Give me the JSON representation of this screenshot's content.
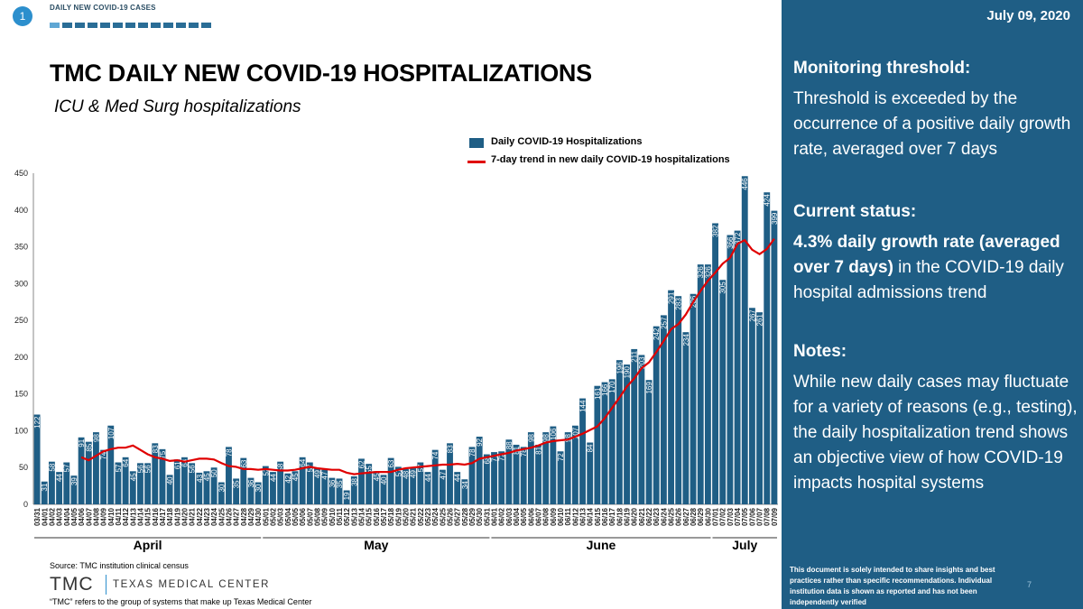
{
  "header": {
    "badge": "1",
    "breadcrumb": "DAILY NEW COVID-19 CASES",
    "title": "TMC DAILY NEW COVID-19 HOSPITALIZATIONS",
    "subtitle": "ICU & Med Surg hospitalizations"
  },
  "legend": {
    "bars": "Daily COVID-19 Hospitalizations",
    "line": "7-day trend in new daily COVID-19 hospitalizations"
  },
  "chart_data": {
    "type": "bar",
    "categories": [
      "03/31",
      "04/01",
      "04/02",
      "04/03",
      "04/04",
      "04/05",
      "04/06",
      "04/07",
      "04/08",
      "04/09",
      "04/10",
      "04/11",
      "04/12",
      "04/13",
      "04/14",
      "04/15",
      "04/16",
      "04/17",
      "04/18",
      "04/19",
      "04/20",
      "04/21",
      "04/22",
      "04/23",
      "04/24",
      "04/25",
      "04/26",
      "04/27",
      "04/28",
      "04/29",
      "04/30",
      "05/01",
      "05/02",
      "05/03",
      "05/04",
      "05/05",
      "05/06",
      "05/07",
      "05/08",
      "05/09",
      "05/10",
      "05/11",
      "05/12",
      "05/13",
      "05/14",
      "05/15",
      "05/16",
      "05/17",
      "05/18",
      "05/19",
      "05/20",
      "05/21",
      "05/22",
      "05/23",
      "05/24",
      "05/25",
      "05/26",
      "05/27",
      "05/28",
      "05/29",
      "05/30",
      "05/31",
      "06/01",
      "06/02",
      "06/03",
      "06/04",
      "06/05",
      "06/06",
      "06/07",
      "06/08",
      "06/09",
      "06/10",
      "06/11",
      "06/12",
      "06/13",
      "06/14",
      "06/15",
      "06/16",
      "06/17",
      "06/18",
      "06/19",
      "06/20",
      "06/21",
      "06/22",
      "06/23",
      "06/24",
      "06/25",
      "06/26",
      "06/27",
      "06/28",
      "06/29",
      "06/30",
      "07/01",
      "07/02",
      "07/03",
      "07/04",
      "07/05",
      "07/06",
      "07/07",
      "07/08",
      "07/09"
    ],
    "series": [
      {
        "name": "Daily COVID-19 Hospitalizations",
        "values": [
          122,
          31,
          58,
          44,
          57,
          39,
          91,
          85,
          98,
          74,
          107,
          57,
          64,
          45,
          56,
          56,
          83,
          75,
          40,
          61,
          64,
          56,
          43,
          45,
          50,
          30,
          78,
          35,
          63,
          36,
          30,
          52,
          44,
          58,
          42,
          45,
          64,
          57,
          49,
          47,
          36,
          35,
          19,
          38,
          62,
          55,
          45,
          40,
          63,
          51,
          48,
          49,
          57,
          44,
          74,
          47,
          83,
          44,
          34,
          78,
          92,
          68,
          71,
          72,
          88,
          81,
          78,
          98,
          81,
          98,
          106,
          72,
          98,
          107,
          144,
          84,
          161,
          166,
          170,
          196,
          190,
          211,
          203,
          169,
          242,
          257,
          291,
          283,
          234,
          286,
          326,
          326,
          382,
          305,
          366,
          372,
          446,
          267,
          261,
          424,
          399
        ]
      },
      {
        "name": "7-day trend in new daily COVID-19 hospitalizations",
        "values": [
          null,
          null,
          null,
          null,
          null,
          null,
          64,
          60,
          66,
          72,
          75,
          77,
          77,
          80,
          74,
          68,
          64,
          62,
          59,
          60,
          58,
          60,
          62,
          62,
          61,
          56,
          52,
          51,
          48,
          48,
          47,
          48,
          47,
          46,
          46,
          47,
          49,
          51,
          49,
          48,
          47,
          47,
          43,
          41,
          42,
          43,
          44,
          44,
          44,
          47,
          49,
          50,
          51,
          52,
          53,
          54,
          54,
          55,
          54,
          56,
          62,
          64,
          66,
          68,
          70,
          73,
          75,
          77,
          80,
          84,
          86,
          87,
          88,
          92,
          96,
          101,
          106,
          117,
          131,
          145,
          160,
          171,
          185,
          193,
          207,
          222,
          238,
          245,
          258,
          275,
          290,
          304,
          315,
          327,
          335,
          354,
          359,
          346,
          340,
          347,
          361
        ]
      }
    ],
    "ylim": [
      0,
      450
    ],
    "yticks": [
      0,
      50,
      100,
      150,
      200,
      250,
      300,
      350,
      400,
      450
    ],
    "months": [
      {
        "label": "April",
        "start": 0,
        "end": 30
      },
      {
        "label": "May",
        "start": 31,
        "end": 61
      },
      {
        "label": "June",
        "start": 62,
        "end": 91
      },
      {
        "label": "July",
        "start": 92,
        "end": 100
      }
    ],
    "colors": {
      "bar": "#1f5e85",
      "line": "#e00000"
    }
  },
  "footer": {
    "source": "Source: TMC institution clinical census",
    "logo_mark": "TMC",
    "logo_name": "TEXAS MEDICAL CENTER",
    "note": "“TMC” refers to the group of systems that make up Texas Medical Center"
  },
  "sidebar": {
    "date": "July 09, 2020",
    "threshold_heading": "Monitoring threshold:",
    "threshold_text": "Threshold is exceeded by the occurrence of a positive daily growth rate, averaged over 7 days",
    "status_heading": "Current status:",
    "status_bold": "4.3% daily growth rate (averaged over 7 days)",
    "status_rest": " in the COVID-19 daily hospital admissions trend",
    "notes_heading": "Notes:",
    "notes_text": "While new daily cases may fluctuate for a variety of reasons (e.g., testing), the daily hospitalization trend shows an objective view of how COVID-19 impacts hospital systems",
    "disclaimer": "This document is solely intended to share insights and best practices rather than specific recommendations. Individual institution data is shown as reported and has not been independently verified",
    "page_number": "7"
  }
}
